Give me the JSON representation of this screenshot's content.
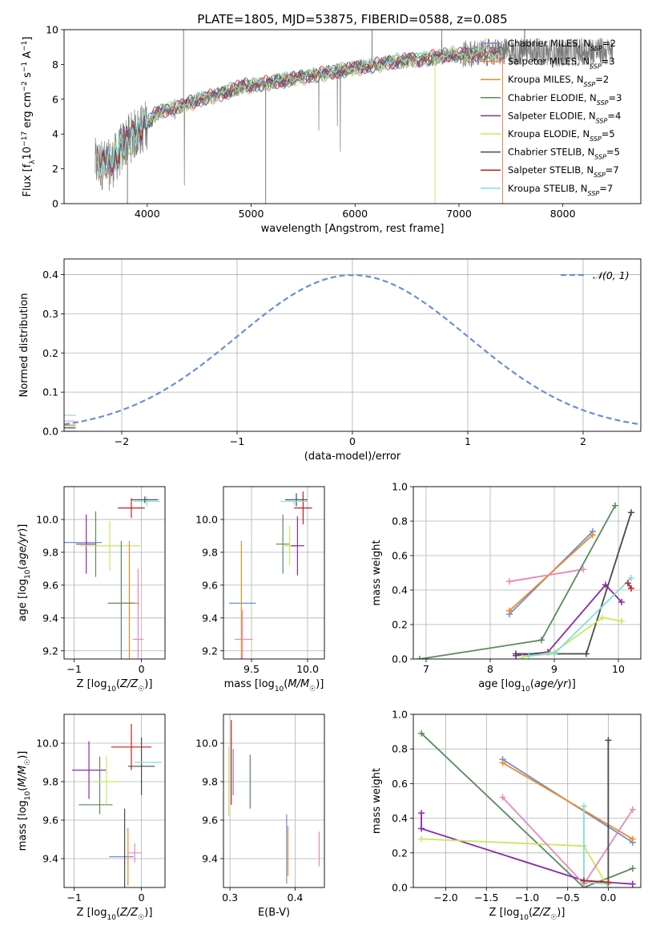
{
  "title": "PLATE=1805, MJD=53875, FIBERID=0588, z=0.085",
  "colors": [
    "#6b8fd6",
    "#e8834a",
    "#f08a25",
    "#5a8a5a",
    "#8a2aa8",
    "#c8e860",
    "#4a4a4a",
    "#c02020",
    "#80dde0",
    "#e888b8"
  ],
  "chart_data": [
    {
      "type": "line",
      "title": "PLATE=1805, MJD=53875, FIBERID=0588, z=0.085",
      "xlabel": "wavelength [Angstrom, rest frame]",
      "ylabel": "Flux [f_λ10^-17 erg cm^-2 s^-1 A^-1]",
      "xlim": [
        3200,
        8750
      ],
      "ylim": [
        0,
        10
      ],
      "xticks": [
        "4000",
        "5000",
        "6000",
        "7000",
        "8000"
      ],
      "yticks": [
        "0",
        "2",
        "4",
        "6",
        "8",
        "10"
      ],
      "legend_position": "right",
      "legend": [
        {
          "label": "Chabrier MILES, N_SSP=2",
          "color": "#6b8fd6"
        },
        {
          "label": "Salpeter MILES, N_SSP=3",
          "color": "#e8834a"
        },
        {
          "label": "Kroupa MILES, N_SSP=2",
          "color": "#f08a25"
        },
        {
          "label": "Chabrier ELODIE, N_SSP=3",
          "color": "#5a8a5a"
        },
        {
          "label": "Salpeter ELODIE, N_SSP=4",
          "color": "#8a2aa8"
        },
        {
          "label": "Kroupa ELODIE, N_SSP=5",
          "color": "#c8e860"
        },
        {
          "label": "Chabrier STELIB, N_SSP=5",
          "color": "#4a4a4a"
        },
        {
          "label": "Salpeter STELIB, N_SSP=7",
          "color": "#c02020"
        },
        {
          "label": "Kroupa STELIB, N_SSP=7",
          "color": "#80dde0"
        }
      ],
      "model_continuum": {
        "x": [
          3520,
          3650,
          3800,
          3950,
          4100,
          4300,
          4500,
          4700,
          4900,
          5100,
          5300,
          5500,
          5700,
          5900,
          6100,
          6300,
          6500,
          6700,
          6900,
          7100,
          7300,
          7420
        ],
        "y": [
          2.2,
          2.3,
          3.5,
          4.3,
          5.2,
          5.5,
          5.9,
          6.2,
          6.7,
          6.8,
          7.0,
          7.2,
          7.4,
          7.6,
          7.8,
          8.0,
          8.2,
          8.3,
          8.5,
          8.5,
          8.6,
          8.5
        ]
      },
      "data_continuum": {
        "x": [
          3500,
          3650,
          3800,
          3950,
          4100,
          4300,
          4500,
          4700,
          4900,
          5100,
          5300,
          5500,
          5700,
          5900,
          6100,
          6300,
          6500,
          6700,
          6900,
          7100,
          7300,
          7500,
          7700,
          7900,
          8100,
          8300,
          8480
        ],
        "y": [
          2.3,
          2.2,
          3.6,
          4.3,
          5.2,
          5.6,
          6.0,
          6.3,
          6.7,
          6.9,
          7.1,
          7.3,
          7.5,
          7.7,
          7.9,
          8.1,
          8.2,
          8.3,
          8.5,
          8.6,
          8.7,
          8.7,
          8.8,
          8.6,
          8.7,
          8.8,
          8.7
        ]
      }
    },
    {
      "type": "histogram",
      "xlabel": "(data-model)/error",
      "ylabel": "Normed distribution",
      "xlim": [
        -2.5,
        2.5
      ],
      "ylim": [
        0,
        0.44
      ],
      "xticks": [
        "−2",
        "−1",
        "0",
        "1",
        "2"
      ],
      "yticks": [
        "0.0",
        "0.1",
        "0.2",
        "0.3",
        "0.4"
      ],
      "legend": [
        {
          "label": "𝒩(0, 1)",
          "color": "#6b8fd6",
          "style": "dashed"
        }
      ],
      "legend_position": "top-right",
      "bin_width": 0.1,
      "reference_curve": "normal(0,1)"
    },
    {
      "type": "scatter",
      "panel": "age-vs-Z",
      "xlabel": "Z [log10(Z/Z☉)]",
      "ylabel": "age [log10(age/yr)]",
      "xlim": [
        -1.15,
        0.35
      ],
      "ylim": [
        9.15,
        10.2
      ],
      "xticks": [
        "−1",
        "0"
      ],
      "yticks": [
        "9.2",
        "9.4",
        "9.6",
        "9.8",
        "10.0"
      ],
      "points": [
        {
          "x": -0.99,
          "y": 9.86,
          "xerr": 0.4,
          "yerr": 0.0,
          "color": "#6b8fd6"
        },
        {
          "x": -0.68,
          "y": 9.85,
          "xerr": 0.0,
          "yerr": 0.2,
          "color": "#5a8a5a"
        },
        {
          "x": -0.82,
          "y": 9.85,
          "xerr": 0.15,
          "yerr": 0.18,
          "color": "#8a2aa8"
        },
        {
          "x": -0.47,
          "y": 9.84,
          "xerr": 0.45,
          "yerr": 0.15,
          "color": "#c8e860"
        },
        {
          "x": -0.18,
          "y": 9.49,
          "xerr": 0.15,
          "yerr": 0.38,
          "color": "#f08a25"
        },
        {
          "x": -0.3,
          "y": 9.49,
          "xerr": 0.2,
          "yerr": 0.38,
          "color": "#5a8a5a"
        },
        {
          "x": -0.15,
          "y": 10.07,
          "xerr": 0.2,
          "yerr": 0.06,
          "color": "#c02020"
        },
        {
          "x": 0.08,
          "y": 10.11,
          "xerr": 0.2,
          "yerr": 0.03,
          "color": "#80dde0"
        },
        {
          "x": 0.05,
          "y": 10.12,
          "xerr": 0.2,
          "yerr": 0.02,
          "color": "#4a4a4a"
        },
        {
          "x": -0.05,
          "y": 9.27,
          "xerr": 0.08,
          "yerr": 0.43,
          "color": "#e888b8"
        }
      ]
    },
    {
      "type": "scatter",
      "panel": "age-vs-mass",
      "xlabel": "mass [log10(M/M☉)]",
      "ylabel": "",
      "xlim": [
        9.25,
        10.15
      ],
      "ylim": [
        9.15,
        10.2
      ],
      "xticks": [
        "9.5",
        "10.0"
      ],
      "yticks": [
        "9.2",
        "9.4",
        "9.6",
        "9.8",
        "10.0"
      ],
      "points": [
        {
          "x": 9.42,
          "y": 9.49,
          "xerr": 0.12,
          "yerr": 0.0,
          "color": "#6b8fd6"
        },
        {
          "x": 9.41,
          "y": 9.49,
          "xerr": 0.0,
          "yerr": 0.38,
          "color": "#f08a25"
        },
        {
          "x": 9.43,
          "y": 9.27,
          "xerr": 0.08,
          "yerr": 0.0,
          "color": "#e888b8"
        },
        {
          "x": 9.42,
          "y": 9.27,
          "xerr": 0.0,
          "yerr": 0.18,
          "color": "#e888b8"
        },
        {
          "x": 9.78,
          "y": 9.85,
          "xerr": 0.06,
          "yerr": 0.18,
          "color": "#5a8a5a"
        },
        {
          "x": 9.84,
          "y": 9.84,
          "xerr": 0.06,
          "yerr": 0.12,
          "color": "#c8e860"
        },
        {
          "x": 9.91,
          "y": 9.84,
          "xerr": 0.06,
          "yerr": 0.18,
          "color": "#8a2aa8"
        },
        {
          "x": 9.96,
          "y": 10.07,
          "xerr": 0.08,
          "yerr": 0.1,
          "color": "#c02020"
        },
        {
          "x": 9.9,
          "y": 10.12,
          "xerr": 0.1,
          "yerr": 0.04,
          "color": "#4a4a4a"
        },
        {
          "x": 9.88,
          "y": 10.11,
          "xerr": 0.12,
          "yerr": 0.02,
          "color": "#80dde0"
        }
      ]
    },
    {
      "type": "line",
      "panel": "massweight-vs-age",
      "xlabel": "age [log10(age/yr)]",
      "ylabel": "mass weight",
      "xlim": [
        6.8,
        10.35
      ],
      "ylim": [
        0,
        1.0
      ],
      "xticks": [
        "7",
        "8",
        "9",
        "10"
      ],
      "yticks": [
        "0.0",
        "0.2",
        "0.4",
        "0.6",
        "0.8",
        "1.0"
      ],
      "series": [
        {
          "color": "#6b8fd6",
          "x": [
            8.3,
            9.6
          ],
          "y": [
            0.26,
            0.74
          ]
        },
        {
          "color": "#f08a25",
          "x": [
            8.3,
            9.6
          ],
          "y": [
            0.28,
            0.72
          ]
        },
        {
          "color": "#e888b8",
          "x": [
            8.3,
            9.45
          ],
          "y": [
            0.45,
            0.52
          ]
        },
        {
          "color": "#5a8a5a",
          "x": [
            6.9,
            8.8,
            9.95
          ],
          "y": [
            0.0,
            0.11,
            0.89
          ]
        },
        {
          "color": "#8a2aa8",
          "x": [
            8.4,
            8.9,
            9.8,
            10.05
          ],
          "y": [
            0.02,
            0.04,
            0.43,
            0.33
          ]
        },
        {
          "color": "#4a4a4a",
          "x": [
            8.4,
            9.5,
            10.2
          ],
          "y": [
            0.03,
            0.03,
            0.85
          ]
        },
        {
          "color": "#c8e860",
          "x": [
            8.5,
            9.0,
            9.75,
            10.05
          ],
          "y": [
            0.01,
            0.04,
            0.24,
            0.22
          ]
        },
        {
          "color": "#80dde0",
          "x": [
            8.6,
            9.0,
            10.2
          ],
          "y": [
            0.02,
            0.03,
            0.47
          ]
        },
        {
          "color": "#c02020",
          "x": [
            10.15,
            10.2
          ],
          "y": [
            0.44,
            0.41
          ]
        }
      ]
    },
    {
      "type": "scatter",
      "panel": "mass-vs-Z",
      "xlabel": "Z [log10(Z/Z☉)]",
      "ylabel": "mass [log10(M/M☉)]",
      "xlim": [
        -1.15,
        0.35
      ],
      "ylim": [
        9.25,
        10.15
      ],
      "xticks": [
        "−1",
        "0"
      ],
      "yticks": [
        "9.4",
        "9.6",
        "9.8",
        "10.0"
      ],
      "points": [
        {
          "x": -0.78,
          "y": 9.86,
          "xerr": 0.25,
          "yerr": 0.15,
          "color": "#8a2aa8"
        },
        {
          "x": -0.68,
          "y": 9.68,
          "xerr": 0.25,
          "yerr": 0.0,
          "color": "#5a8a5a"
        },
        {
          "x": -0.62,
          "y": 9.78,
          "xerr": 0.0,
          "yerr": 0.15,
          "color": "#5a8a5a"
        },
        {
          "x": -0.52,
          "y": 9.8,
          "xerr": 0.2,
          "yerr": 0.13,
          "color": "#c8e860"
        },
        {
          "x": -0.3,
          "y": 9.41,
          "xerr": 0.18,
          "yerr": 0.0,
          "color": "#6b8fd6"
        },
        {
          "x": -0.25,
          "y": 9.41,
          "xerr": 0.0,
          "yerr": 0.25,
          "color": "#4a4a4a"
        },
        {
          "x": -0.2,
          "y": 9.41,
          "xerr": 0.0,
          "yerr": 0.15,
          "color": "#f08a25"
        },
        {
          "x": -0.15,
          "y": 9.98,
          "xerr": 0.3,
          "yerr": 0.12,
          "color": "#c02020"
        },
        {
          "x": 0.0,
          "y": 9.88,
          "xerr": 0.2,
          "yerr": 0.15,
          "color": "#4a4a4a"
        },
        {
          "x": 0.1,
          "y": 9.9,
          "xerr": 0.2,
          "yerr": 0.0,
          "color": "#80dde0"
        },
        {
          "x": -0.1,
          "y": 9.43,
          "xerr": 0.1,
          "yerr": 0.05,
          "color": "#e888b8"
        }
      ]
    },
    {
      "type": "scatter",
      "panel": "mass-vs-EBV",
      "xlabel": "E(B-V)",
      "ylabel": "",
      "xlim": [
        0.29,
        0.445
      ],
      "ylim": [
        9.25,
        10.15
      ],
      "xticks": [
        "0.3",
        "0.4"
      ],
      "yticks": [
        "9.4",
        "9.6",
        "9.8",
        "10.0"
      ],
      "points": [
        {
          "x": 0.302,
          "y": 9.9,
          "yerr": 0.22,
          "color": "#c02020"
        },
        {
          "x": 0.298,
          "y": 9.8,
          "yerr": 0.18,
          "color": "#c8e860"
        },
        {
          "x": 0.305,
          "y": 9.85,
          "yerr": 0.12,
          "color": "#6b8fd6"
        },
        {
          "x": 0.331,
          "y": 9.8,
          "yerr": 0.14,
          "color": "#5a8a5a"
        },
        {
          "x": 0.387,
          "y": 9.45,
          "yerr": 0.18,
          "color": "#6b8fd6"
        },
        {
          "x": 0.389,
          "y": 9.44,
          "yerr": 0.13,
          "color": "#f08a25"
        },
        {
          "x": 0.437,
          "y": 9.45,
          "yerr": 0.09,
          "color": "#e888b8"
        }
      ]
    },
    {
      "type": "line",
      "panel": "massweight-vs-Z",
      "xlabel": "Z [log10(Z/Z☉)]",
      "ylabel": "mass weight",
      "xlim": [
        -2.4,
        0.4
      ],
      "ylim": [
        0,
        1.0
      ],
      "xticks": [
        "−2.0",
        "−1.5",
        "−1.0",
        "−0.5",
        "0.0"
      ],
      "yticks": [
        "0.0",
        "0.2",
        "0.4",
        "0.6",
        "0.8",
        "1.0"
      ],
      "series": [
        {
          "color": "#6b8fd6",
          "x": [
            -1.3,
            0.3
          ],
          "y": [
            0.74,
            0.26
          ]
        },
        {
          "color": "#f08a25",
          "x": [
            -1.3,
            0.3
          ],
          "y": [
            0.72,
            0.28
          ]
        },
        {
          "color": "#5a8a5a",
          "x": [
            -2.3,
            -0.3,
            0.3
          ],
          "y": [
            0.89,
            0.0,
            0.11
          ]
        },
        {
          "color": "#8a2aa8",
          "x": [
            -2.3,
            -2.3,
            -0.3,
            0.3
          ],
          "y": [
            0.43,
            0.34,
            0.04,
            0.02
          ]
        },
        {
          "color": "#c8e860",
          "x": [
            -2.3,
            -0.3,
            0.0
          ],
          "y": [
            0.28,
            0.24,
            0.0
          ]
        },
        {
          "color": "#e888b8",
          "x": [
            -1.3,
            -0.3,
            0.3
          ],
          "y": [
            0.52,
            0.02,
            0.45
          ]
        },
        {
          "color": "#4a4a4a",
          "x": [
            0.0,
            0.0
          ],
          "y": [
            0.85,
            0.03
          ]
        },
        {
          "color": "#80dde0",
          "x": [
            -0.3,
            -0.3,
            0.0
          ],
          "y": [
            0.47,
            0.03,
            0.02
          ]
        },
        {
          "color": "#c02020",
          "x": [
            -0.3,
            0.0
          ],
          "y": [
            0.04,
            0.03
          ]
        }
      ]
    }
  ]
}
